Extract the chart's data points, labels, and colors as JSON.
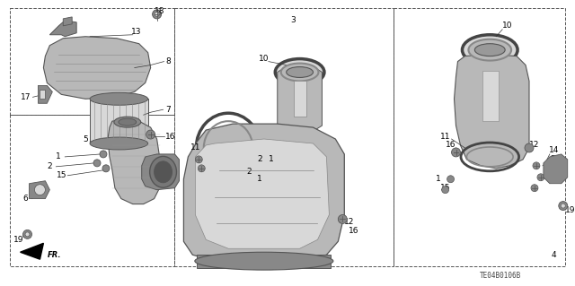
{
  "background_color": "#ffffff",
  "text_color": "#000000",
  "figsize": [
    6.4,
    3.19
  ],
  "dpi": 100,
  "diagram_code": "TE04B0106B",
  "part_gray": "#b8b8b8",
  "part_dark": "#555555",
  "part_mid": "#888888",
  "part_light": "#d8d8d8",
  "line_color": "#333333",
  "box_color": "#444444"
}
